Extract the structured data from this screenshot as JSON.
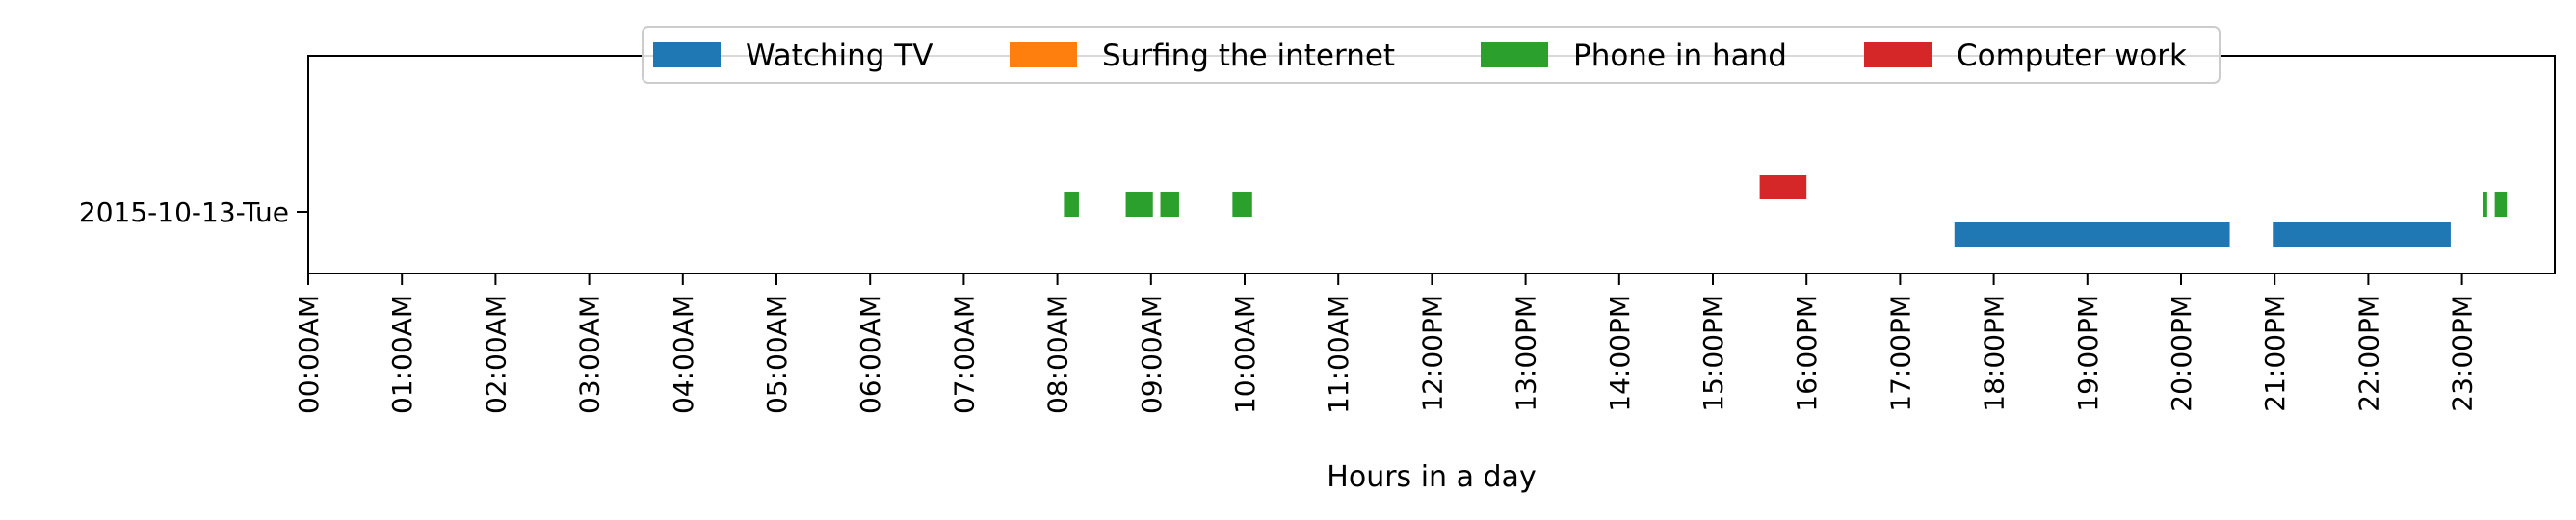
{
  "chart_data": {
    "type": "timeline",
    "xlabel": "Hours in a day",
    "xlim": [
      0,
      24
    ],
    "x_ticks": [
      "00:00AM",
      "01:00AM",
      "02:00AM",
      "03:00AM",
      "04:00AM",
      "05:00AM",
      "06:00AM",
      "07:00AM",
      "08:00AM",
      "09:00AM",
      "10:00AM",
      "11:00AM",
      "12:00PM",
      "13:00PM",
      "14:00PM",
      "15:00PM",
      "16:00PM",
      "17:00PM",
      "18:00PM",
      "19:00PM",
      "20:00PM",
      "21:00PM",
      "22:00PM",
      "23:00PM"
    ],
    "rows": [
      "2015-10-13-Tue"
    ],
    "legend": {
      "placement": "top-center",
      "entries": [
        {
          "name": "Watching TV",
          "color": "#1f77b4"
        },
        {
          "name": "Surfing the internet",
          "color": "#ff7f0e"
        },
        {
          "name": "Phone in hand",
          "color": "#2ca02c"
        },
        {
          "name": "Computer work",
          "color": "#d62728"
        }
      ]
    },
    "series": [
      {
        "name": "Watching TV",
        "color": "#1f77b4",
        "lane": "low",
        "segments": [
          [
            17.58,
            20.52
          ],
          [
            20.98,
            22.88
          ]
        ]
      },
      {
        "name": "Surfing the internet",
        "color": "#ff7f0e",
        "lane": "high",
        "segments": []
      },
      {
        "name": "Phone in hand",
        "color": "#2ca02c",
        "lane": "mid",
        "segments": [
          [
            8.07,
            8.23
          ],
          [
            8.73,
            9.02
          ],
          [
            9.1,
            9.3
          ],
          [
            9.87,
            10.08
          ],
          [
            23.22,
            23.27
          ],
          [
            23.35,
            23.48
          ]
        ]
      },
      {
        "name": "Computer work",
        "color": "#d62728",
        "lane": "high",
        "segments": [
          [
            15.5,
            16.0
          ]
        ]
      }
    ]
  }
}
